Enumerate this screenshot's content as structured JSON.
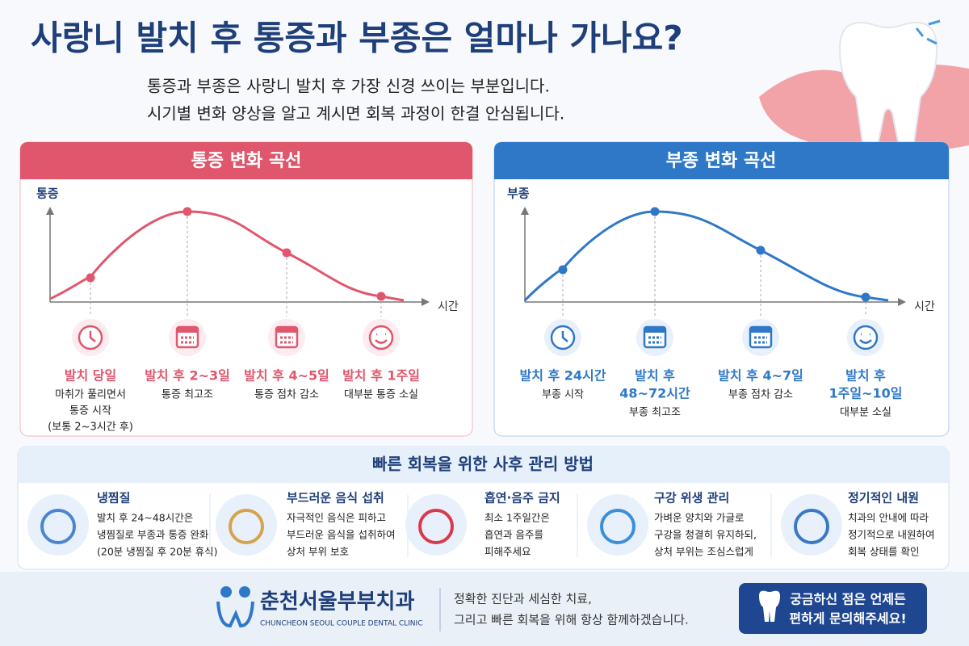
{
  "header": {
    "title": "사랑니 발치 후 통증과 부종은 얼마나 가나요?",
    "subtitle": [
      "통증과 부종은 사랑니 발치 후 가장 신경 쓰이는 부분입니다.",
      "시기별 변화 양상을 알고 계시면 회복 과정이 한결 안심됩니다."
    ]
  },
  "pain": {
    "title": "통증 변화 곡선",
    "y_label": "통증",
    "x_label": "시간",
    "stages": [
      {
        "label": [
          "발치 당일"
        ],
        "desc": [
          "마취가 풀리면서",
          "통증 시작",
          "(보통 2~3시간 후)"
        ]
      },
      {
        "label": [
          "발치 후 2~3일"
        ],
        "desc": [
          "통증 최고조"
        ]
      },
      {
        "label": [
          "발치 후 4~5일"
        ],
        "desc": [
          "통증 점차 감소"
        ]
      },
      {
        "label": [
          "발치 후 1주일"
        ],
        "desc": [
          "대부분 통증 소실"
        ]
      }
    ]
  },
  "swelling": {
    "title": "부종 변화 곡선",
    "y_label": "부종",
    "x_label": "시간",
    "stages": [
      {
        "label": [
          "발치 후 24시간"
        ],
        "desc": [
          "부종 시작"
        ]
      },
      {
        "label": [
          "발치 후",
          "48~72시간"
        ],
        "desc": [
          "부종 최고조"
        ]
      },
      {
        "label": [
          "발치 후 4~7일"
        ],
        "desc": [
          "부종 점차 감소"
        ]
      },
      {
        "label": [
          "발치 후",
          "1주일~10일"
        ],
        "desc": [
          "대부분 소실"
        ]
      }
    ]
  },
  "care": {
    "title": "빠른 회복을 위한 사후 관리 방법",
    "items": [
      {
        "title": "냉찜질",
        "lines": [
          "발치 후 24~48시간은",
          "냉찜질로 부종과 통증 완화",
          "(20분 냉찜질 후 20분 휴식)"
        ]
      },
      {
        "title": "부드러운 음식 섭취",
        "lines": [
          "자극적인 음식은 피하고",
          "부드러운 음식을 섭취하여",
          "상처 부위 보호"
        ]
      },
      {
        "title": "흡연·음주 금지",
        "lines": [
          "최소 1주일간은",
          "흡연과 음주를",
          "피해주세요"
        ]
      },
      {
        "title": "구강 위생 관리",
        "lines": [
          "가벼운 양치와 가글로",
          "구강을 청결히 유지하되,",
          "상처 부위는 조심스럽게"
        ]
      },
      {
        "title": "정기적인 내원",
        "lines": [
          "치과의 안내에 따라",
          "정기적으로 내원하여",
          "회복 상태를 확인"
        ]
      }
    ]
  },
  "footer": {
    "clinic_name": "춘천서울부부치과",
    "clinic_english": "CHUNCHEON SEOUL COUPLE DENTAL CLINIC",
    "message": [
      "정확한 진단과 세심한 치료,",
      "그리고 빠른 회복을 위해 항상 함께하겠습니다."
    ],
    "cta": [
      "궁금하신 점은 언제든",
      "편하게 문의해주세요!"
    ]
  }
}
